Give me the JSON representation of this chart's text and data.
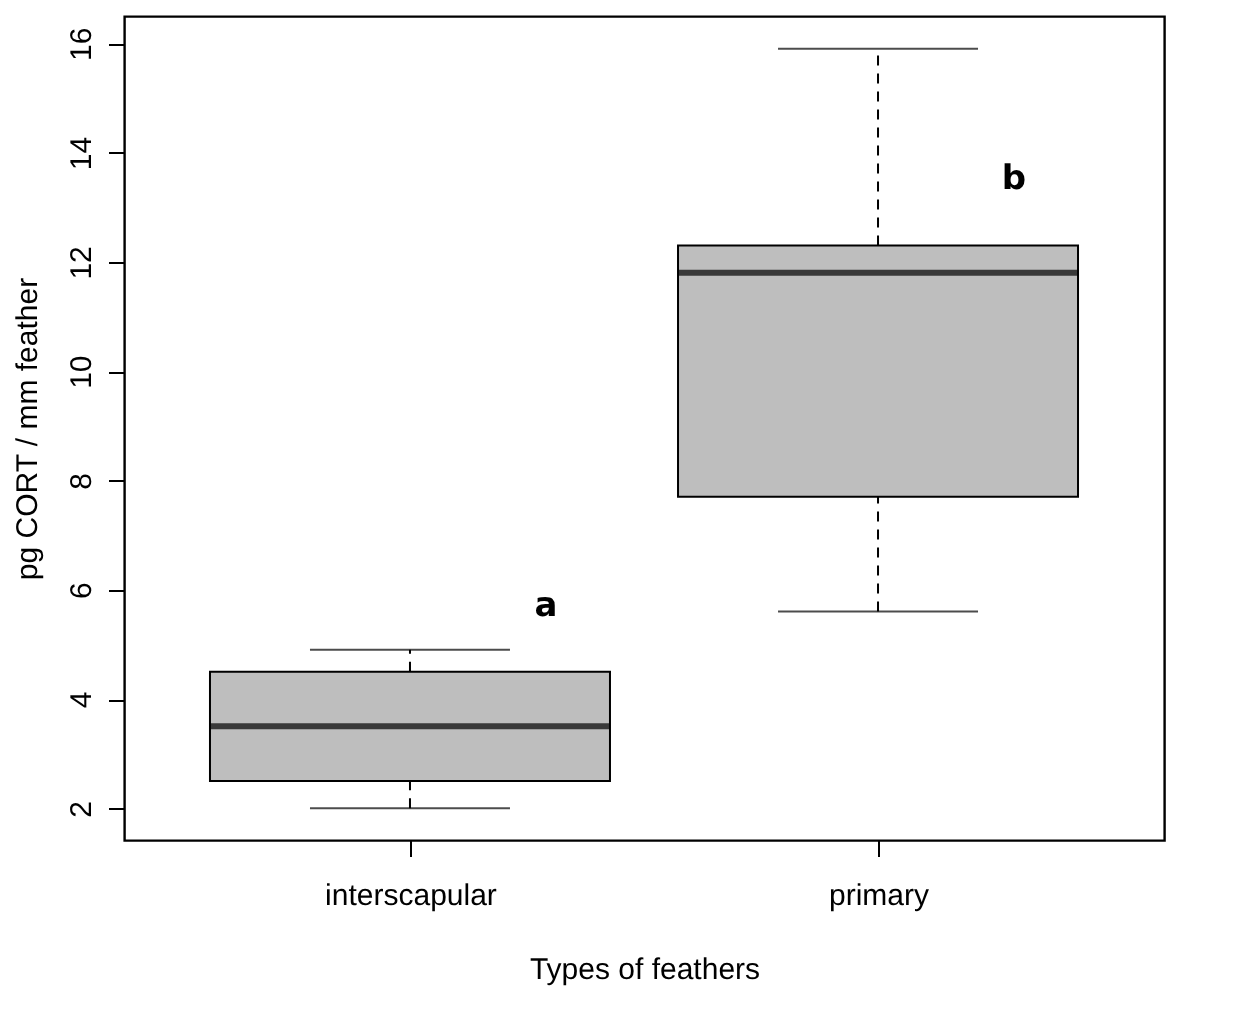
{
  "chart_data": {
    "type": "box",
    "xlabel": "Types of feathers",
    "ylabel": "pg CORT / mm feather",
    "categories": [
      "interscapular",
      "primary"
    ],
    "series": [
      {
        "color": "#bebebe",
        "boxes": [
          {
            "low": 2.0,
            "q1": 2.5,
            "median": 3.5,
            "q3": 4.5,
            "high": 4.9
          },
          {
            "low": 5.6,
            "q1": 7.7,
            "median": 11.8,
            "q3": 12.3,
            "high": 15.9
          }
        ]
      }
    ],
    "ylim": [
      1.42,
      16.5
    ],
    "yticks": [
      2,
      4,
      6,
      8,
      10,
      12,
      14,
      16
    ],
    "grid": false,
    "annotations": [
      "a",
      "b"
    ]
  }
}
